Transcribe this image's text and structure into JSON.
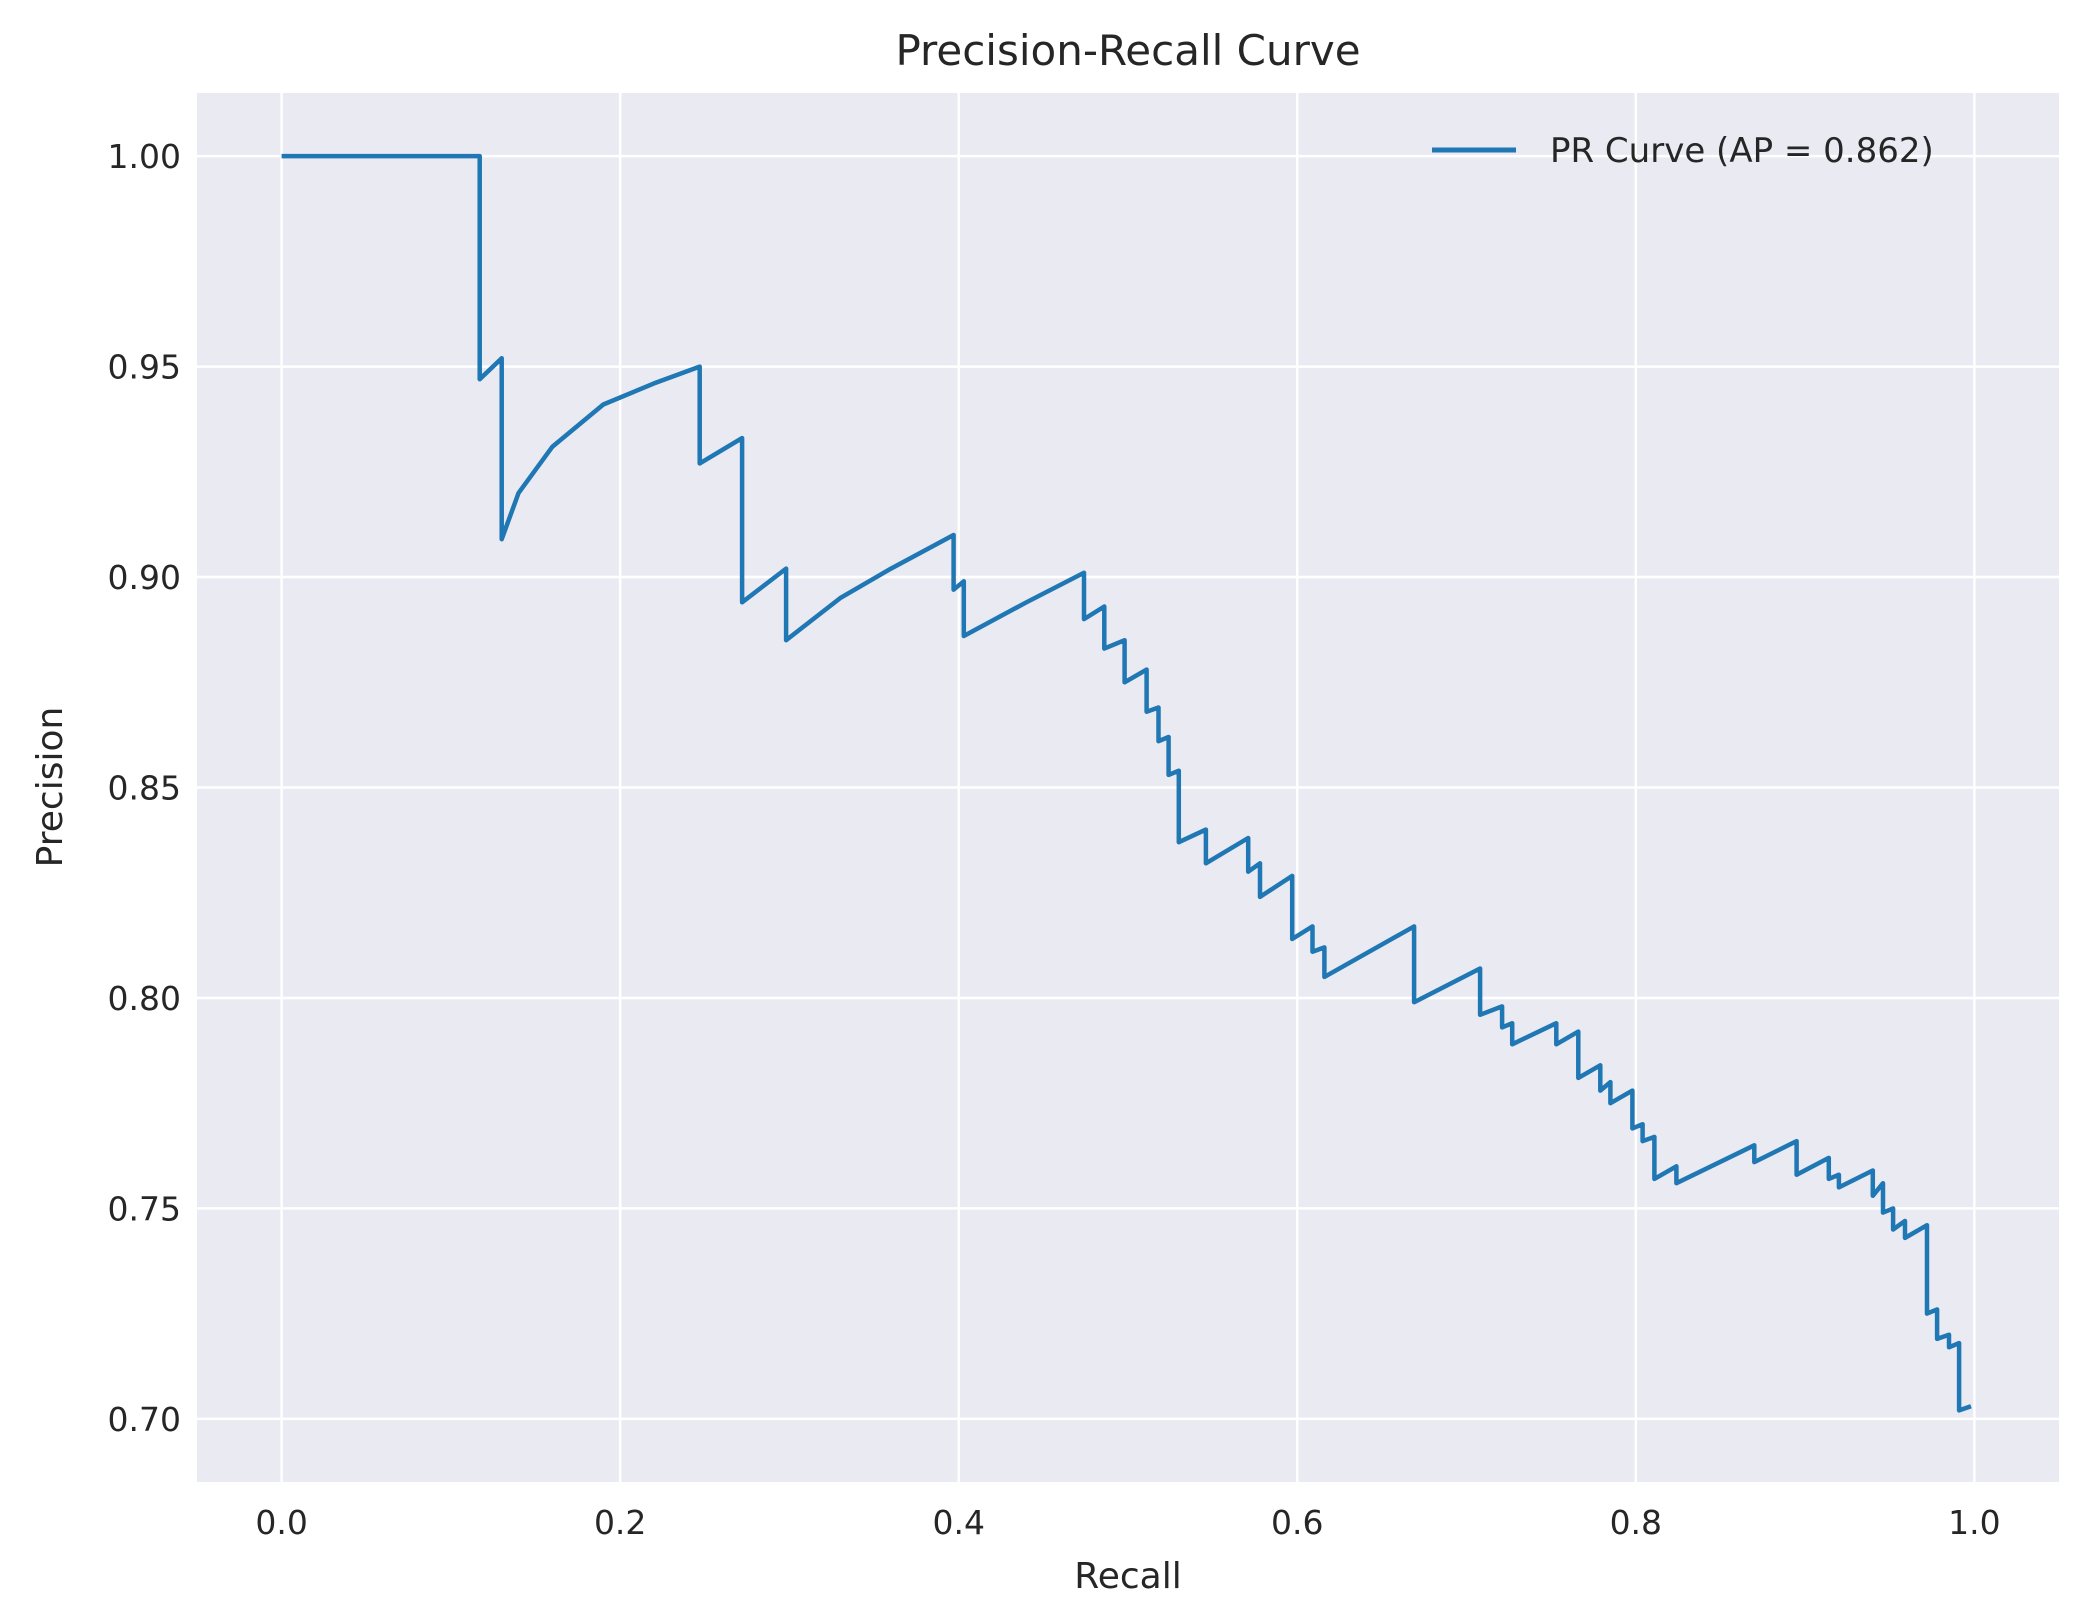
{
  "chart_data": {
    "type": "line",
    "title": "Precision-Recall Curve",
    "xlabel": "Recall",
    "ylabel": "Precision",
    "xlim": [
      -0.05,
      1.05
    ],
    "ylim": [
      0.685,
      1.015
    ],
    "xticks": [
      0.0,
      0.2,
      0.4,
      0.6,
      0.8,
      1.0
    ],
    "xtick_labels": [
      "0.0",
      "0.2",
      "0.4",
      "0.6",
      "0.8",
      "1.0"
    ],
    "yticks": [
      0.7,
      0.75,
      0.8,
      0.85,
      0.9,
      0.95,
      1.0
    ],
    "ytick_labels": [
      "0.70",
      "0.75",
      "0.80",
      "0.85",
      "0.90",
      "0.95",
      "1.00"
    ],
    "grid": true,
    "legend_position": "top-right",
    "background_color": "#eaeaf2",
    "series": [
      {
        "name": "PR Curve (AP = 0.862)",
        "color": "#1f77b4",
        "x": [
          0.0,
          0.117,
          0.117,
          0.13,
          0.13,
          0.14,
          0.16,
          0.19,
          0.22,
          0.247,
          0.247,
          0.272,
          0.272,
          0.298,
          0.298,
          0.33,
          0.36,
          0.397,
          0.397,
          0.403,
          0.403,
          0.44,
          0.474,
          0.474,
          0.486,
          0.486,
          0.498,
          0.498,
          0.511,
          0.511,
          0.518,
          0.518,
          0.524,
          0.524,
          0.53,
          0.53,
          0.546,
          0.546,
          0.571,
          0.571,
          0.578,
          0.578,
          0.597,
          0.597,
          0.609,
          0.609,
          0.616,
          0.616,
          0.669,
          0.669,
          0.708,
          0.708,
          0.721,
          0.721,
          0.727,
          0.727,
          0.753,
          0.753,
          0.766,
          0.766,
          0.779,
          0.779,
          0.785,
          0.785,
          0.798,
          0.798,
          0.804,
          0.804,
          0.811,
          0.811,
          0.824,
          0.824,
          0.87,
          0.87,
          0.895,
          0.895,
          0.914,
          0.914,
          0.92,
          0.92,
          0.94,
          0.94,
          0.946,
          0.946,
          0.952,
          0.952,
          0.959,
          0.959,
          0.972,
          0.972,
          0.978,
          0.978,
          0.985,
          0.985,
          0.991,
          0.991,
          0.998
        ],
        "y": [
          1.0,
          1.0,
          0.947,
          0.952,
          0.909,
          0.92,
          0.931,
          0.941,
          0.946,
          0.95,
          0.927,
          0.933,
          0.894,
          0.902,
          0.885,
          0.895,
          0.902,
          0.91,
          0.897,
          0.899,
          0.886,
          0.894,
          0.901,
          0.89,
          0.893,
          0.883,
          0.885,
          0.875,
          0.878,
          0.868,
          0.869,
          0.861,
          0.862,
          0.853,
          0.854,
          0.837,
          0.84,
          0.832,
          0.838,
          0.83,
          0.832,
          0.824,
          0.829,
          0.814,
          0.817,
          0.811,
          0.812,
          0.805,
          0.817,
          0.799,
          0.807,
          0.796,
          0.798,
          0.793,
          0.794,
          0.789,
          0.794,
          0.789,
          0.792,
          0.781,
          0.784,
          0.778,
          0.78,
          0.775,
          0.778,
          0.769,
          0.77,
          0.766,
          0.767,
          0.757,
          0.76,
          0.756,
          0.765,
          0.761,
          0.766,
          0.758,
          0.762,
          0.757,
          0.758,
          0.755,
          0.759,
          0.753,
          0.756,
          0.749,
          0.75,
          0.745,
          0.747,
          0.743,
          0.746,
          0.725,
          0.726,
          0.719,
          0.72,
          0.717,
          0.718,
          0.702,
          0.703
        ]
      }
    ]
  }
}
